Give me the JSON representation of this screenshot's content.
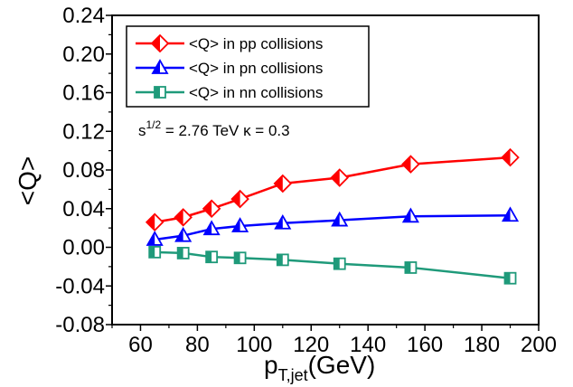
{
  "chart_data": {
    "type": "line",
    "xlabel_main": "p",
    "xlabel_sub": "T,jet",
    "xlabel_unit": "(GeV)",
    "ylabel": "<Q>",
    "xlim": [
      50,
      200
    ],
    "ylim": [
      -0.08,
      0.24
    ],
    "xticks": [
      "60",
      "80",
      "100",
      "120",
      "140",
      "160",
      "180",
      "200"
    ],
    "yticks": [
      "-0.08",
      "-0.04",
      "0.00",
      "0.04",
      "0.08",
      "0.12",
      "0.16",
      "0.20",
      "0.24"
    ],
    "x": [
      65,
      75,
      85,
      95,
      110,
      130,
      155,
      190
    ],
    "series": [
      {
        "name": "<Q> in pp collisions",
        "color": "#ff0000",
        "marker": "diamond-half",
        "values": [
          0.026,
          0.031,
          0.04,
          0.05,
          0.066,
          0.072,
          0.086,
          0.093
        ]
      },
      {
        "name": "<Q> in pn collisions",
        "color": "#0000ff",
        "marker": "triangle-half",
        "values": [
          0.008,
          0.012,
          0.019,
          0.022,
          0.025,
          0.028,
          0.032,
          0.033
        ]
      },
      {
        "name": "<Q> in nn collisions",
        "color": "#1f9a7a",
        "marker": "square-half",
        "values": [
          -0.005,
          -0.006,
          -0.01,
          -0.011,
          -0.013,
          -0.017,
          -0.021,
          -0.032
        ]
      }
    ],
    "annotation": {
      "base": "s",
      "sup": "1/2",
      "rest": " = 2.76 TeV  κ = 0.3"
    },
    "grid": false,
    "legend_position": "top-left"
  }
}
